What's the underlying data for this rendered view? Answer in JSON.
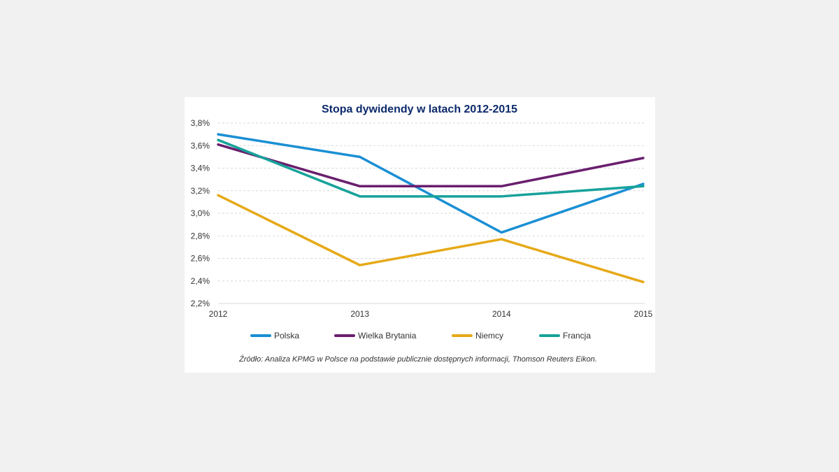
{
  "chart_data": {
    "type": "line",
    "title": "Stopa dywidendy w latach 2012-2015",
    "x": [
      "2012",
      "2013",
      "2014",
      "2015"
    ],
    "ylim": [
      2.2,
      3.8
    ],
    "y_step": 0.2,
    "y_tick_labels": [
      "2,2%",
      "2,4%",
      "2,6%",
      "2,8%",
      "3,0%",
      "3,2%",
      "3,4%",
      "3,6%",
      "3,8%"
    ],
    "grid": true,
    "legend_position": "bottom",
    "series": [
      {
        "name": "Polska",
        "color": "#1a8fd4",
        "values": [
          3.7,
          3.5,
          2.83,
          3.26
        ]
      },
      {
        "name": "Wielka Brytania",
        "color": "#6a1f6e",
        "values": [
          3.61,
          3.24,
          3.24,
          3.49
        ]
      },
      {
        "name": "Niemcy",
        "color": "#e6a918",
        "values": [
          3.16,
          2.54,
          2.77,
          2.39
        ]
      },
      {
        "name": "Francja",
        "color": "#17a29a",
        "values": [
          3.65,
          3.15,
          3.15,
          3.24
        ]
      }
    ],
    "source": "Źródło: Analiza KPMG w Polsce na podstawie publicznie dostępnych informacji, Thomson Reuters Eikon."
  },
  "colors": {
    "title": "#0c2a6b",
    "grid": "#d9d9d9",
    "background": "#ffffff",
    "page": "#f1f1f1"
  }
}
